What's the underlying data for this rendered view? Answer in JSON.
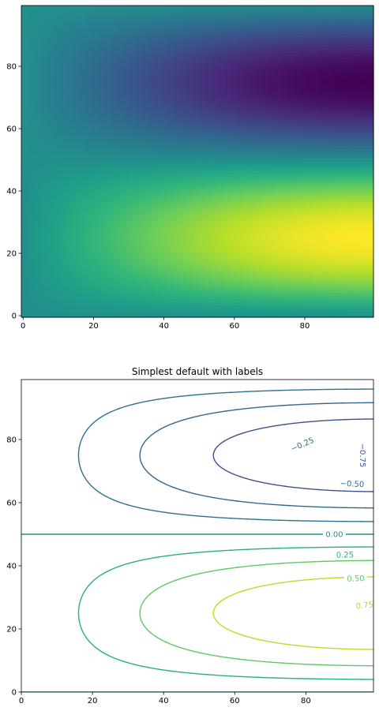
{
  "chart_data": [
    {
      "type": "heatmap",
      "title": "",
      "xlim": [
        -0.5,
        99.5
      ],
      "ylim": [
        -0.5,
        99.5
      ],
      "xticks": [
        "0",
        "20",
        "40",
        "60",
        "80"
      ],
      "yticks": [
        "0",
        "20",
        "40",
        "60",
        "80"
      ],
      "colormap": "viridis",
      "value_range": [
        -1,
        1
      ],
      "field": "Z = sin(pi*x/200) * sin(pi*y/50) at grid index (x, y) in [0, 99]",
      "extremes": [
        {
          "x": 99,
          "y": 75,
          "value": -1.0
        },
        {
          "x": 99,
          "y": 25,
          "value": 1.0
        }
      ]
    },
    {
      "type": "contour",
      "title": "Simplest default with labels",
      "xlim": [
        0,
        99
      ],
      "ylim": [
        0,
        99
      ],
      "xticks": [
        "0",
        "20",
        "40",
        "60",
        "80"
      ],
      "yticks": [
        "0",
        "20",
        "40",
        "60",
        "80"
      ],
      "levels": [
        -1.0,
        -0.75,
        -0.5,
        -0.25,
        0.0,
        0.25,
        0.5,
        0.75,
        1.0
      ],
      "level_colors": {
        "-0.75": "#3b528b",
        "-0.50": "#31688e",
        "-0.25": "#2c728e",
        "0.00": "#21918c",
        "0.25": "#29af7f",
        "0.50": "#5ec962",
        "0.75": "#b5de2b"
      },
      "labels": [
        {
          "text": "−0.25",
          "x": 79,
          "y": 78.5
        },
        {
          "text": "−0.50",
          "x": 93,
          "y": 66
        },
        {
          "text": "−0.75",
          "x": 96,
          "y": 75
        },
        {
          "text": "0.00",
          "x": 88,
          "y": 50
        },
        {
          "text": "0.25",
          "x": 91,
          "y": 43.5
        },
        {
          "text": "0.50",
          "x": 94,
          "y": 36
        },
        {
          "text": "0.75",
          "x": 96.5,
          "y": 27.5
        }
      ]
    }
  ]
}
